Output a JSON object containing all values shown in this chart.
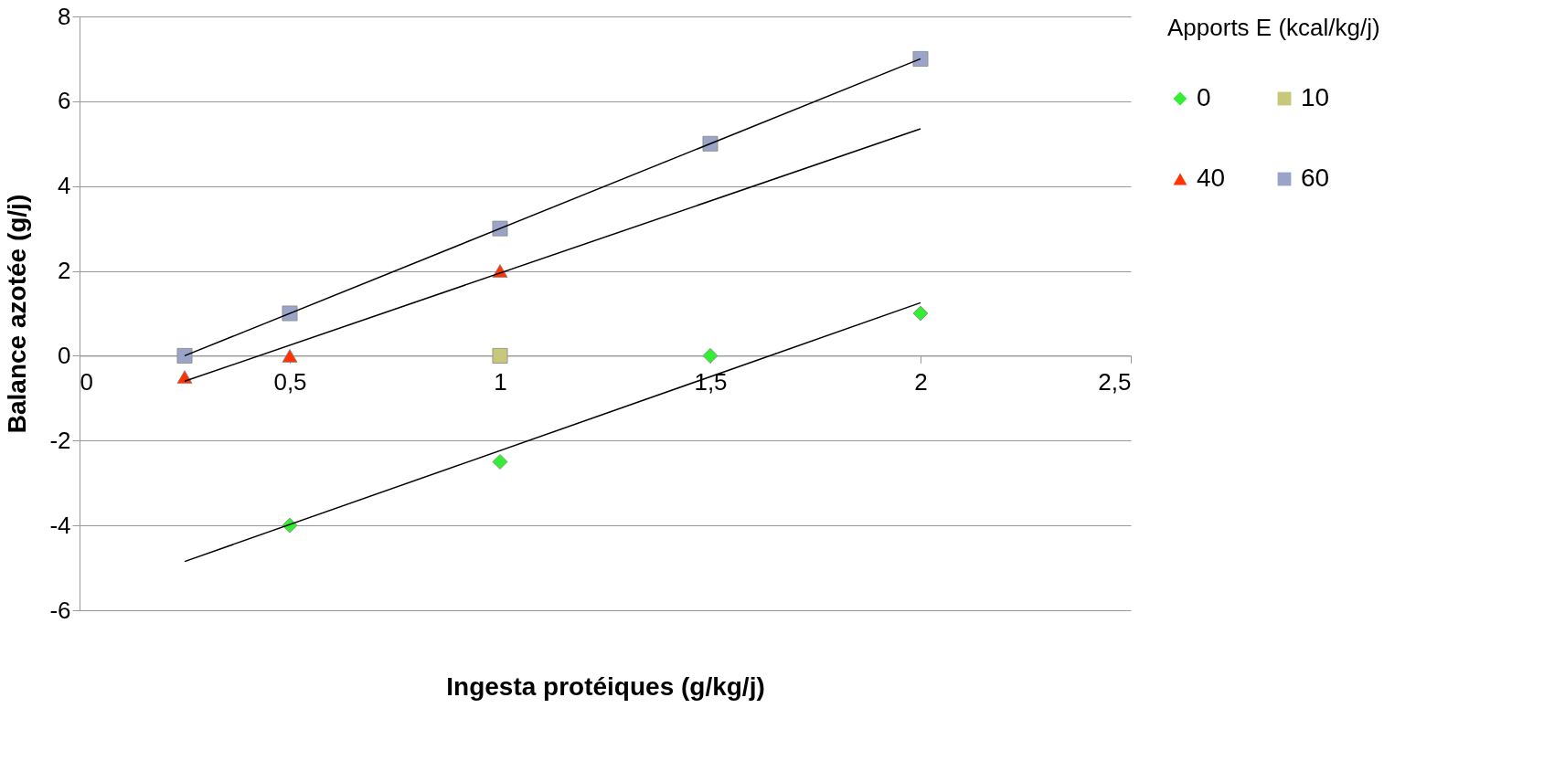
{
  "chart_data": {
    "type": "scatter",
    "xlabel": "Ingesta protéiques (g/kg/j)",
    "ylabel": "Balance azotée (g/j)",
    "legend_title": "Apports E (kcal/kg/j)",
    "xlim": [
      0,
      2.5
    ],
    "xticks": [
      0,
      {
        "value": 0.5,
        "label": "0,5"
      },
      1,
      {
        "value": 1.5,
        "label": "1,5"
      },
      2,
      {
        "value": 2.5,
        "label": "2,5"
      }
    ],
    "ylim": [
      -6,
      8
    ],
    "yticks": [
      -6,
      -4,
      -2,
      0,
      2,
      4,
      6,
      8
    ],
    "grid": "y",
    "legend": "right",
    "series": [
      {
        "name": "0",
        "color": "#33ee33",
        "marker": "diamond",
        "x": [
          0.5,
          1,
          1.5,
          2
        ],
        "values": [
          -4,
          -2.5,
          0,
          1
        ]
      },
      {
        "name": "10",
        "color": "#c8c87a",
        "marker": "square",
        "x": [
          1
        ],
        "values": [
          0
        ]
      },
      {
        "name": "40",
        "color": "#ff3300",
        "marker": "triangle",
        "x": [
          0.25,
          0.5,
          1
        ],
        "values": [
          -0.5,
          0,
          2
        ]
      },
      {
        "name": "60",
        "color": "#9aa4c8",
        "marker": "square",
        "x": [
          0.25,
          0.5,
          1,
          1.5,
          2
        ],
        "values": [
          0,
          1,
          3,
          5,
          7
        ]
      },
      {
        "type": "line",
        "color": "#000000",
        "x": [
          0.25,
          2
        ],
        "values": [
          -4.85,
          1.25
        ]
      },
      {
        "type": "line",
        "color": "#000000",
        "x": [
          0.25,
          2
        ],
        "values": [
          -0.6,
          5.35
        ]
      },
      {
        "type": "line",
        "color": "#000000",
        "x": [
          0.25,
          2
        ],
        "values": [
          0,
          7
        ]
      }
    ]
  }
}
